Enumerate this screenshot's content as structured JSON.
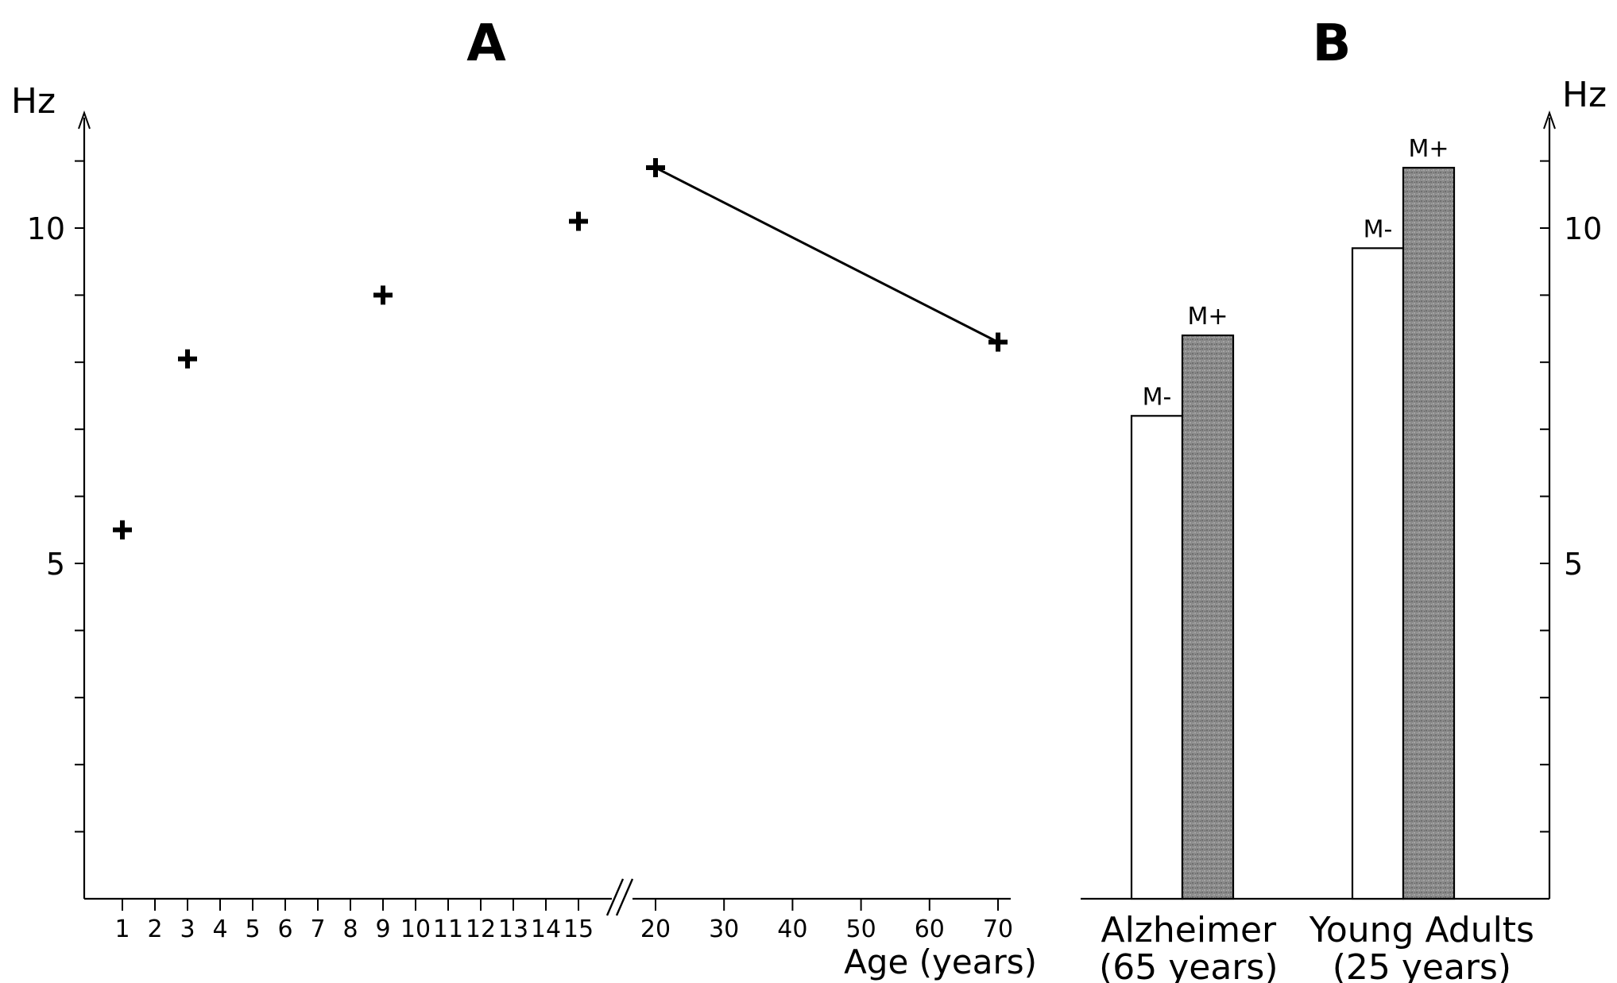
{
  "chart_data": [
    {
      "panel": "A",
      "type": "scatter",
      "title": "A",
      "ylabel": "Hz",
      "xlabel": "Age (years)",
      "ylim": [
        0,
        11.3
      ],
      "y_ticks_labeled": [
        5,
        10
      ],
      "y_minor_tick_step": 1,
      "x_axis_break": "between 15 and 20",
      "x_tick_labels": [
        "1",
        "2",
        "3",
        "4",
        "5",
        "6",
        "7",
        "8",
        "9",
        "10",
        "11",
        "12",
        "13",
        "14",
        "15",
        "20",
        "30",
        "40",
        "50",
        "60",
        "70"
      ],
      "series": [
        {
          "marker": "plus",
          "points": [
            {
              "x": 1,
              "y": 5.5
            },
            {
              "x": 3,
              "y": 8.05
            },
            {
              "x": 9,
              "y": 9.0
            },
            {
              "x": 15,
              "y": 10.1
            },
            {
              "x": 20,
              "y": 10.9
            },
            {
              "x": 70,
              "y": 8.3
            }
          ]
        }
      ],
      "line": {
        "from": {
          "x": 20,
          "y": 10.9
        },
        "to": {
          "x": 70,
          "y": 8.3
        }
      }
    },
    {
      "panel": "B",
      "type": "bar",
      "title": "B",
      "ylabel": "Hz",
      "ylim": [
        0,
        11.3
      ],
      "y_ticks_labeled": [
        5,
        10
      ],
      "y_minor_tick_step": 1,
      "categories": [
        {
          "line1": "Alzheimer",
          "line2": "(65 years)"
        },
        {
          "line1": "Young Adults",
          "line2": "(25 years)"
        }
      ],
      "series": [
        {
          "name": "M-",
          "values": [
            7.2,
            9.7
          ],
          "fill": "#ffffff"
        },
        {
          "name": "M+",
          "values": [
            8.4,
            10.9
          ],
          "fill": "#8c8c8c"
        }
      ]
    }
  ]
}
